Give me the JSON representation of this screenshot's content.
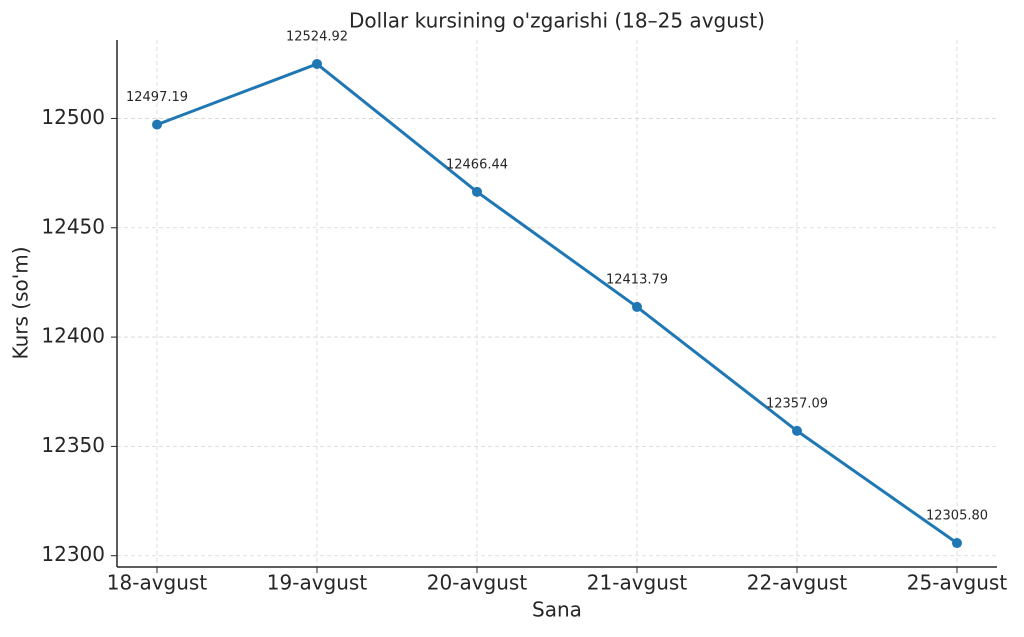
{
  "chart_data": {
    "type": "line",
    "title": "Dollar kursining o'zgarishi (18–25 avgust)",
    "x_label": "Sana",
    "y_label": "Kurs (so'm)",
    "categories": [
      "18-avgust",
      "19-avgust",
      "20-avgust",
      "21-avgust",
      "22-avgust",
      "25-avgust"
    ],
    "series": [
      {
        "color": "#1f77b4",
        "values": [
          12497.19,
          12524.92,
          12466.44,
          12413.79,
          12357.09,
          12305.8
        ],
        "value_labels": [
          "12497.19",
          "12524.92",
          "12466.44",
          "12413.79",
          "12357.09",
          "12305.80"
        ]
      }
    ],
    "ylim": [
      12294.84,
      12535.88
    ],
    "yticks": [
      12300,
      12350,
      12400,
      12450,
      12500
    ],
    "grid": true
  }
}
